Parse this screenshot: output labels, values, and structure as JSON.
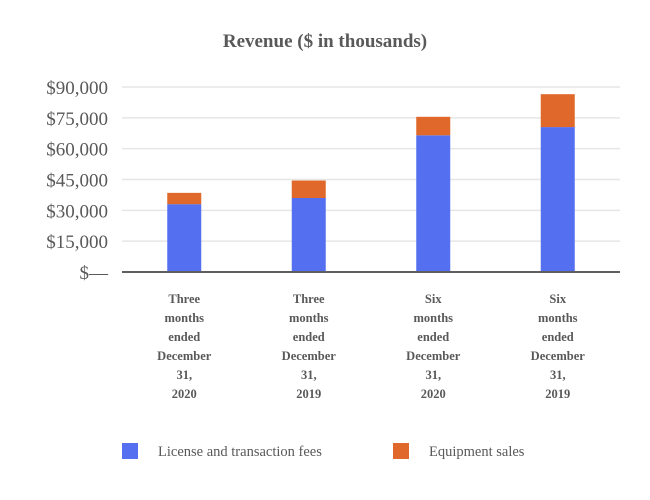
{
  "chart_data": {
    "type": "bar",
    "stacked": true,
    "title": "Revenue ($ in thousands)",
    "categories": [
      [
        "Three",
        "months",
        "ended",
        "December",
        "31,",
        "2020"
      ],
      [
        "Three",
        "months",
        "ended",
        "December",
        "31,",
        "2019"
      ],
      [
        "Six",
        "months",
        "ended",
        "December",
        "31,",
        "2020"
      ],
      [
        "Six",
        "months",
        "ended",
        "December",
        "31,",
        "2019"
      ]
    ],
    "series": [
      {
        "name": "License and transaction fees",
        "color": "#5470f0",
        "values": [
          33000,
          36000,
          66500,
          70500
        ]
      },
      {
        "name": "Equipment sales",
        "color": "#e0682a",
        "values": [
          5500,
          8500,
          9000,
          16000
        ]
      }
    ],
    "yticks": [
      0,
      15000,
      30000,
      45000,
      60000,
      75000,
      90000
    ],
    "ytick_labels": [
      "$—",
      "$15,000",
      "$30,000",
      "$45,000",
      "$60,000",
      "$75,000",
      "$90,000"
    ],
    "ylim": [
      0,
      90000
    ],
    "grid": true,
    "legend_position": "bottom",
    "gridline_color": "#e6e6e6",
    "axis_color": "#5f5f5f"
  }
}
